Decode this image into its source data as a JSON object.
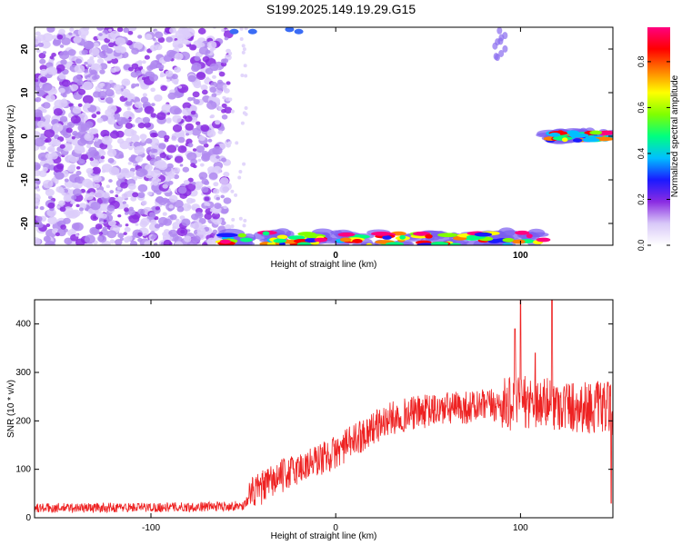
{
  "title": "S199.2025.149.19.29.G15",
  "chart_data": [
    {
      "type": "heatmap",
      "xlabel": "Height of straight line (km)",
      "ylabel": "Frequency (Hz)",
      "xlim": [
        -163,
        150
      ],
      "ylim": [
        -25,
        25
      ],
      "x_ticks": [
        -100,
        0,
        100
      ],
      "y_ticks": [
        -20,
        -10,
        0,
        10,
        20
      ],
      "grid": false,
      "colorbar": {
        "label": "Normalized spectral amplitude",
        "range": [
          0,
          0.95
        ],
        "ticks": [
          0.0,
          0.2,
          0.4,
          0.6,
          0.8
        ],
        "colormap": [
          "#ffffff",
          "#d8c8f8",
          "#8a2be2",
          "#1a1aff",
          "#00bfff",
          "#00ff80",
          "#80ff00",
          "#ffff00",
          "#ff8000",
          "#ff0000",
          "#ff0080"
        ]
      },
      "regions": [
        {
          "x": [
            -163,
            -58
          ],
          "y": [
            -25,
            25
          ],
          "amplitude": 0.1,
          "note": "scattered noise"
        },
        {
          "x": [
            -60,
            113
          ],
          "y": [
            -25,
            -22
          ],
          "amplitude": 0.85
        },
        {
          "x": [
            115,
            150
          ],
          "y": [
            -1,
            1
          ],
          "amplitude": 0.85
        },
        {
          "x": [
            86,
            92
          ],
          "y": [
            18,
            25
          ],
          "amplitude": 0.3
        }
      ]
    },
    {
      "type": "line",
      "xlabel": "Height of straight line (km)",
      "ylabel": "SNR (10 * v/v)",
      "xlim": [
        -163,
        150
      ],
      "ylim": [
        0,
        450
      ],
      "x_ticks": [
        -100,
        0,
        100
      ],
      "y_ticks": [
        0,
        100,
        200,
        300,
        400
      ],
      "grid": false,
      "series": [
        {
          "color": "#ee2222",
          "trend_x": [
            -163,
            -80,
            -50,
            -45,
            -30,
            -15,
            0,
            10,
            20,
            30,
            40,
            60,
            80,
            95,
            105,
            115,
            130,
            150
          ],
          "trend_y": [
            20,
            22,
            25,
            50,
            85,
            110,
            135,
            160,
            185,
            205,
            215,
            225,
            230,
            235,
            240,
            235,
            230,
            225
          ],
          "spikes": [
            {
              "x": 97,
              "y": 390
            },
            {
              "x": 100,
              "y": 450
            },
            {
              "x": 117,
              "y": 450
            },
            {
              "x": 108,
              "y": 340
            },
            {
              "x": 149,
              "y": 30
            }
          ]
        }
      ]
    }
  ]
}
